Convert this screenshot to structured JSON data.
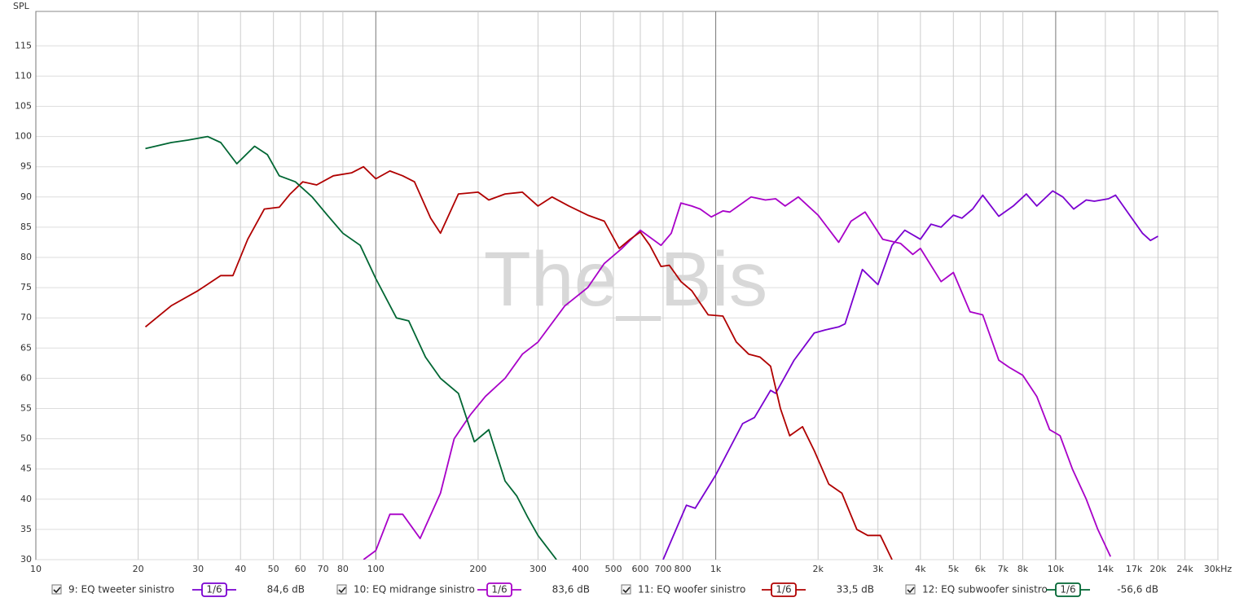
{
  "chart_data": {
    "type": "line",
    "y_label": "SPL",
    "watermark": "The_Bis",
    "x_log": true,
    "grid": true,
    "xlim": [
      10,
      30000
    ],
    "ylim": [
      30,
      120.7
    ],
    "xticks": [
      10,
      20,
      30,
      40,
      50,
      60,
      70,
      80,
      100,
      200,
      300,
      400,
      500,
      600,
      700,
      800,
      {
        "value": 1000,
        "label": "1k"
      },
      {
        "value": 2000,
        "label": "2k"
      },
      {
        "value": 3000,
        "label": "3k"
      },
      {
        "value": 4000,
        "label": "4k"
      },
      {
        "value": 5000,
        "label": "5k"
      },
      {
        "value": 6000,
        "label": "6k"
      },
      {
        "value": 7000,
        "label": "7k"
      },
      {
        "value": 8000,
        "label": "8k"
      },
      {
        "value": 10000,
        "label": "10k"
      },
      {
        "value": 14000,
        "label": "14k"
      },
      {
        "value": 17000,
        "label": "17k"
      },
      {
        "value": 20000,
        "label": "20k"
      },
      {
        "value": 24000,
        "label": "24k"
      },
      {
        "value": 30000,
        "label": "30kHz"
      }
    ],
    "yticks": [
      30,
      35,
      40,
      45,
      50,
      55,
      60,
      65,
      70,
      75,
      80,
      85,
      90,
      95,
      100,
      105,
      110,
      115
    ],
    "series": [
      {
        "name": "9: EQ tweeter sinistro",
        "color": "#7a00d0",
        "smoothing": "1/6",
        "level": "84,6 dB",
        "x": [
          700,
          820,
          870,
          1000,
          1200,
          1300,
          1450,
          1500,
          1700,
          1950,
          2100,
          2300,
          2400,
          2700,
          3000,
          3300,
          3600,
          4000,
          4300,
          4600,
          5000,
          5300,
          5700,
          6100,
          6800,
          7500,
          8200,
          8800,
          9800,
          10500,
          11300,
          12300,
          13000,
          14300,
          15000,
          16500,
          18000,
          19000,
          20000
        ],
        "values": [
          30,
          39,
          38.5,
          44,
          52.5,
          53.5,
          58,
          57.5,
          63,
          67.5,
          68,
          68.5,
          69,
          78,
          75.5,
          82,
          84.5,
          83,
          85.5,
          85,
          87,
          86.5,
          88,
          90.3,
          86.8,
          88.5,
          90.5,
          88.5,
          91,
          90,
          88,
          89.5,
          89.3,
          89.7,
          90.3,
          87,
          84,
          82.8,
          83.5
        ]
      },
      {
        "name": "10: EQ midrange sinistro",
        "color": "#a800c8",
        "smoothing": "1/6",
        "level": "83,6 dB",
        "x": [
          92,
          100,
          110,
          120,
          135,
          155,
          170,
          190,
          210,
          240,
          270,
          300,
          360,
          420,
          470,
          530,
          600,
          690,
          740,
          790,
          850,
          900,
          970,
          1050,
          1100,
          1270,
          1400,
          1500,
          1600,
          1750,
          2000,
          2300,
          2500,
          2750,
          3100,
          3500,
          3800,
          4000,
          4600,
          5000,
          5600,
          6100,
          6800,
          7300,
          8000,
          8800,
          9600,
          10300,
          11200,
          12300,
          13300,
          14500
        ],
        "values": [
          30,
          31.5,
          37.5,
          37.5,
          33.5,
          41,
          50,
          54,
          57,
          60,
          64,
          66,
          72,
          75,
          79,
          81.5,
          84.5,
          82,
          84,
          89,
          88.5,
          88,
          86.7,
          87.7,
          87.5,
          90,
          89.5,
          89.7,
          88.5,
          90,
          87,
          82.5,
          86,
          87.5,
          83,
          82.3,
          80.5,
          81.5,
          76,
          77.5,
          71,
          70.5,
          63,
          61.8,
          60.5,
          57,
          51.5,
          50.5,
          45,
          40,
          35,
          30.5
        ]
      },
      {
        "name": "11: EQ woofer sinistro",
        "color": "#b00000",
        "smoothing": "1/6",
        "level": "33,5 dB",
        "x": [
          21,
          25,
          30,
          35,
          38,
          42,
          47,
          52,
          56,
          61,
          67,
          75,
          85,
          92,
          100,
          110,
          120,
          130,
          145,
          155,
          175,
          200,
          215,
          240,
          270,
          300,
          330,
          370,
          420,
          470,
          520,
          560,
          600,
          640,
          690,
          730,
          790,
          850,
          950,
          1050,
          1150,
          1250,
          1350,
          1450,
          1550,
          1650,
          1800,
          1950,
          2150,
          2350,
          2600,
          2800,
          3050,
          3300
        ],
        "values": [
          68.5,
          72,
          74.5,
          77,
          77,
          83,
          88,
          88.3,
          90.5,
          92.5,
          92,
          93.5,
          94,
          95,
          93,
          94.3,
          93.5,
          92.5,
          86.5,
          84,
          90.5,
          90.8,
          89.5,
          90.5,
          90.8,
          88.5,
          90,
          88.5,
          87,
          86,
          81.5,
          83,
          84.2,
          82,
          78.5,
          78.7,
          76,
          74.5,
          70.5,
          70.3,
          66,
          64,
          63.5,
          62,
          55,
          50.5,
          52,
          48,
          42.5,
          41,
          35,
          34,
          34,
          30
        ]
      },
      {
        "name": "12: EQ subwoofer sinistro",
        "color": "#006633",
        "smoothing": "1/6",
        "level": "-56,6 dB",
        "x": [
          21,
          25,
          28,
          32,
          35,
          39,
          44,
          48,
          52,
          58,
          65,
          72,
          80,
          90,
          100,
          115,
          125,
          140,
          155,
          175,
          195,
          215,
          240,
          260,
          280,
          300,
          340
        ],
        "values": [
          98,
          99,
          99.4,
          100,
          99,
          95.5,
          98.4,
          97,
          93.5,
          92.5,
          90,
          87,
          84,
          82,
          76.5,
          70,
          69.5,
          63.5,
          60,
          57.5,
          49.5,
          51.5,
          43,
          40.5,
          37,
          34,
          30
        ]
      }
    ]
  }
}
